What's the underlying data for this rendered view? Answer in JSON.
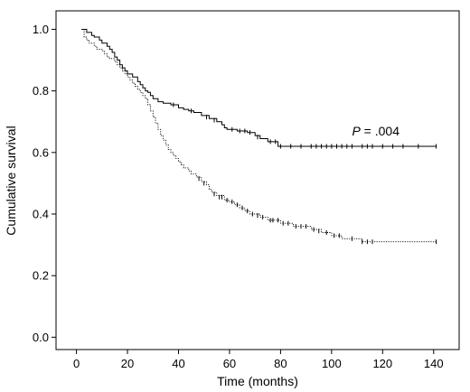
{
  "chart_data": {
    "type": "line",
    "xlabel": "Time (months)",
    "ylabel": "Cumulative survival",
    "xlim": [
      -8,
      150
    ],
    "ylim": [
      -0.04,
      1.06
    ],
    "xticks": [
      0,
      20,
      40,
      60,
      80,
      100,
      120,
      140
    ],
    "yticks": [
      0.0,
      0.2,
      0.4,
      0.6,
      0.8,
      1.0
    ],
    "xtick_labels": [
      "0",
      "20",
      "40",
      "60",
      "80",
      "100",
      "120",
      "140"
    ],
    "ytick_labels": [
      "0.0",
      "0.2",
      "0.4",
      "0.6",
      "0.8",
      "1.0"
    ],
    "grid": false,
    "annotation": {
      "p_symbol": "P",
      "p_text": " = .004",
      "x": 108,
      "y": 0.655
    },
    "series": [
      {
        "style": "solid",
        "color": "#000000",
        "points": [
          [
            2,
            1.0
          ],
          [
            4,
            0.99
          ],
          [
            6,
            0.98
          ],
          [
            7,
            0.975
          ],
          [
            9,
            0.965
          ],
          [
            10,
            0.955
          ],
          [
            12,
            0.945
          ],
          [
            13,
            0.935
          ],
          [
            14,
            0.925
          ],
          [
            15,
            0.91
          ],
          [
            16,
            0.9
          ],
          [
            17,
            0.885
          ],
          [
            18,
            0.875
          ],
          [
            19,
            0.865
          ],
          [
            20,
            0.855
          ],
          [
            22,
            0.845
          ],
          [
            24,
            0.83
          ],
          [
            25,
            0.82
          ],
          [
            26,
            0.81
          ],
          [
            27,
            0.8
          ],
          [
            28,
            0.795
          ],
          [
            29,
            0.785
          ],
          [
            30,
            0.775
          ],
          [
            32,
            0.765
          ],
          [
            34,
            0.76
          ],
          [
            37,
            0.755
          ],
          [
            40,
            0.745
          ],
          [
            42,
            0.74
          ],
          [
            44,
            0.735
          ],
          [
            46,
            0.73
          ],
          [
            49,
            0.72
          ],
          [
            52,
            0.71
          ],
          [
            55,
            0.7
          ],
          [
            57,
            0.69
          ],
          [
            58,
            0.68
          ],
          [
            59,
            0.675
          ],
          [
            63,
            0.67
          ],
          [
            67,
            0.665
          ],
          [
            70,
            0.655
          ],
          [
            72,
            0.645
          ],
          [
            75,
            0.635
          ],
          [
            79,
            0.62
          ],
          [
            141,
            0.62
          ]
        ],
        "censors": [
          [
            38,
            0.755
          ],
          [
            45,
            0.735
          ],
          [
            51,
            0.715
          ],
          [
            54,
            0.705
          ],
          [
            61,
            0.675
          ],
          [
            64,
            0.67
          ],
          [
            66,
            0.67
          ],
          [
            68,
            0.665
          ],
          [
            71,
            0.65
          ],
          [
            76,
            0.635
          ],
          [
            78,
            0.635
          ],
          [
            80,
            0.62
          ],
          [
            84,
            0.62
          ],
          [
            88,
            0.62
          ],
          [
            92,
            0.62
          ],
          [
            94,
            0.62
          ],
          [
            96,
            0.62
          ],
          [
            98,
            0.62
          ],
          [
            100,
            0.62
          ],
          [
            102,
            0.62
          ],
          [
            104,
            0.62
          ],
          [
            106,
            0.62
          ],
          [
            108,
            0.62
          ],
          [
            112,
            0.62
          ],
          [
            114,
            0.62
          ],
          [
            116,
            0.62
          ],
          [
            120,
            0.62
          ],
          [
            124,
            0.62
          ],
          [
            128,
            0.62
          ],
          [
            134,
            0.62
          ],
          [
            141,
            0.62
          ]
        ]
      },
      {
        "style": "dotted",
        "color": "#000000",
        "points": [
          [
            2,
            1.0
          ],
          [
            3,
            0.975
          ],
          [
            4,
            0.965
          ],
          [
            5,
            0.955
          ],
          [
            7,
            0.945
          ],
          [
            8,
            0.935
          ],
          [
            10,
            0.93
          ],
          [
            11,
            0.92
          ],
          [
            12,
            0.91
          ],
          [
            13,
            0.905
          ],
          [
            15,
            0.895
          ],
          [
            16,
            0.885
          ],
          [
            17,
            0.875
          ],
          [
            18,
            0.865
          ],
          [
            19,
            0.855
          ],
          [
            20,
            0.845
          ],
          [
            21,
            0.835
          ],
          [
            22,
            0.825
          ],
          [
            23,
            0.815
          ],
          [
            24,
            0.805
          ],
          [
            25,
            0.795
          ],
          [
            26,
            0.785
          ],
          [
            27,
            0.775
          ],
          [
            28,
            0.755
          ],
          [
            29,
            0.735
          ],
          [
            30,
            0.715
          ],
          [
            31,
            0.695
          ],
          [
            32,
            0.675
          ],
          [
            33,
            0.655
          ],
          [
            34,
            0.64
          ],
          [
            35,
            0.625
          ],
          [
            36,
            0.61
          ],
          [
            37,
            0.6
          ],
          [
            38,
            0.59
          ],
          [
            39,
            0.58
          ],
          [
            40,
            0.57
          ],
          [
            41,
            0.56
          ],
          [
            42,
            0.55
          ],
          [
            44,
            0.54
          ],
          [
            45,
            0.53
          ],
          [
            47,
            0.52
          ],
          [
            49,
            0.505
          ],
          [
            51,
            0.495
          ],
          [
            52,
            0.48
          ],
          [
            53,
            0.47
          ],
          [
            55,
            0.46
          ],
          [
            58,
            0.445
          ],
          [
            60,
            0.44
          ],
          [
            62,
            0.43
          ],
          [
            64,
            0.42
          ],
          [
            66,
            0.41
          ],
          [
            68,
            0.4
          ],
          [
            72,
            0.39
          ],
          [
            75,
            0.38
          ],
          [
            80,
            0.37
          ],
          [
            85,
            0.36
          ],
          [
            92,
            0.35
          ],
          [
            96,
            0.34
          ],
          [
            100,
            0.33
          ],
          [
            104,
            0.32
          ],
          [
            112,
            0.31
          ],
          [
            141,
            0.31
          ]
        ],
        "censors": [
          [
            48,
            0.515
          ],
          [
            50,
            0.5
          ],
          [
            54,
            0.465
          ],
          [
            56,
            0.455
          ],
          [
            57,
            0.455
          ],
          [
            59,
            0.445
          ],
          [
            61,
            0.44
          ],
          [
            63,
            0.43
          ],
          [
            65,
            0.42
          ],
          [
            67,
            0.41
          ],
          [
            69,
            0.4
          ],
          [
            71,
            0.395
          ],
          [
            73,
            0.39
          ],
          [
            76,
            0.38
          ],
          [
            77,
            0.38
          ],
          [
            79,
            0.38
          ],
          [
            81,
            0.37
          ],
          [
            83,
            0.37
          ],
          [
            86,
            0.36
          ],
          [
            88,
            0.36
          ],
          [
            90,
            0.36
          ],
          [
            93,
            0.35
          ],
          [
            95,
            0.345
          ],
          [
            98,
            0.34
          ],
          [
            101,
            0.33
          ],
          [
            103,
            0.33
          ],
          [
            108,
            0.32
          ],
          [
            112,
            0.31
          ],
          [
            114,
            0.31
          ],
          [
            116,
            0.31
          ],
          [
            141,
            0.31
          ]
        ]
      }
    ]
  }
}
